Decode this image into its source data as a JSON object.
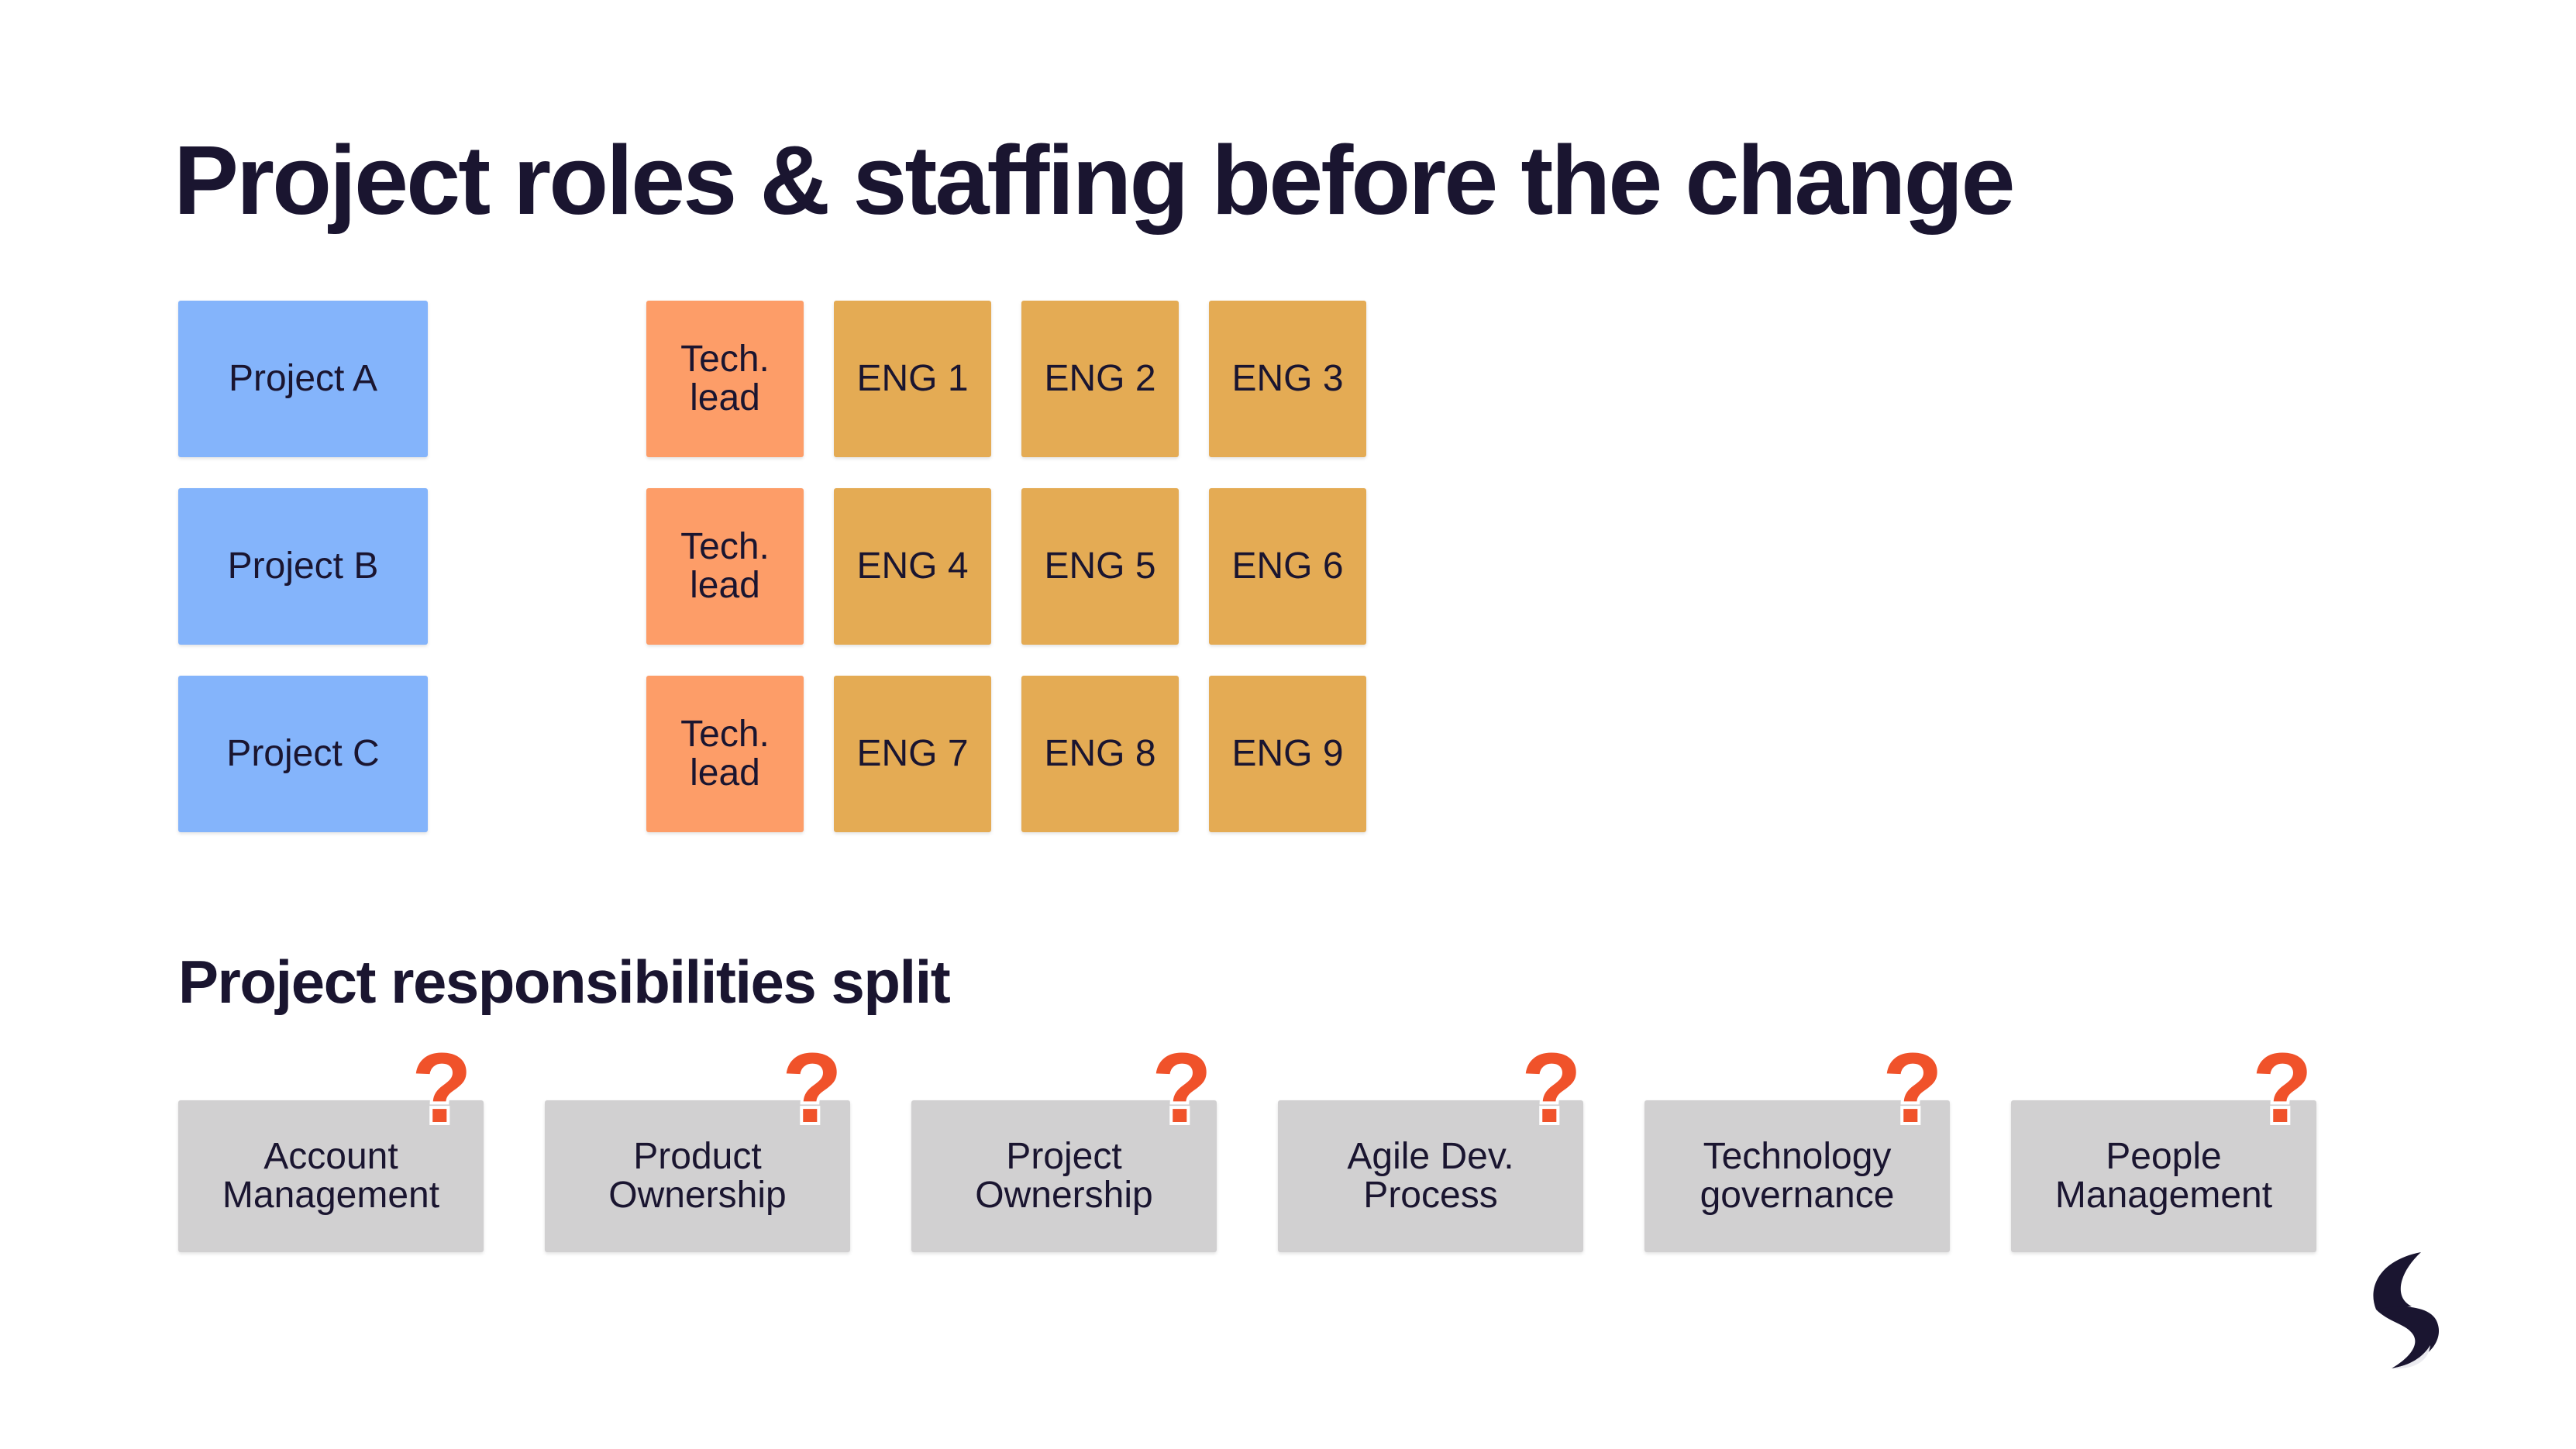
{
  "title": "Project roles & staffing before the change",
  "subtitle": "Project responsibilities split",
  "projects": [
    {
      "label": "Project A",
      "tech_lead": "Tech.\nlead",
      "engineers": [
        "ENG 1",
        "ENG 2",
        "ENG 3"
      ]
    },
    {
      "label": "Project B",
      "tech_lead": "Tech.\nlead",
      "engineers": [
        "ENG 4",
        "ENG 5",
        "ENG 6"
      ]
    },
    {
      "label": "Project C",
      "tech_lead": "Tech.\nlead",
      "engineers": [
        "ENG 7",
        "ENG 8",
        "ENG 9"
      ]
    }
  ],
  "responsibilities": [
    {
      "label": "Account\nManagement"
    },
    {
      "label": "Product\nOwnership"
    },
    {
      "label": "Project\nOwnership"
    },
    {
      "label": "Agile Dev.\nProcess"
    },
    {
      "label": "Technology\ngovernance"
    },
    {
      "label": "People\nManagement"
    }
  ],
  "question_mark": "?",
  "colors": {
    "project": "#84b4fb",
    "tech_lead": "#fd9d68",
    "engineer": "#e4ab54",
    "responsibility": "#d1d0d1",
    "question_mark": "#f0522a",
    "text": "#1a1530"
  },
  "logo_icon": "brand-s-logo-icon"
}
